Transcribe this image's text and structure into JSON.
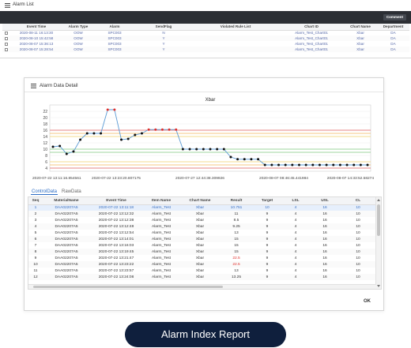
{
  "alarm_list": {
    "title": "Alarm List",
    "comment_label": "Comment",
    "columns": [
      "Event Time",
      "Alarm Type",
      "Alarm",
      "SendFlag",
      "Violated Rule List",
      "Chart ID",
      "Chart Name",
      "Department"
    ],
    "rows": [
      [
        "2020-08-11 16:13:30",
        "OOW",
        "SPC003",
        "N",
        "",
        "Alarm_Test_Chart01",
        "Xbar",
        "DA"
      ],
      [
        "2020-08-10 15:42:58",
        "OOW",
        "SPC003",
        "Y",
        "",
        "Alarm_Test_Chart01",
        "Xbar",
        "DA"
      ],
      [
        "2020-08-07 15:36:13",
        "OOW",
        "SPC003",
        "Y",
        "",
        "Alarm_Test_Chart01",
        "Xbar",
        "DA"
      ],
      [
        "2020-08-07 15:28:54",
        "OOW",
        "SPC003",
        "Y",
        "",
        "Alarm_Test_Chart01",
        "Xbar",
        "DA"
      ]
    ]
  },
  "detail": {
    "title": "Alarm Data Detail",
    "ok_label": "OK",
    "tabs": [
      "ControlData",
      "RawData"
    ],
    "columns": [
      "Seq",
      "MaterialName",
      "Event Time",
      "Item Name",
      "Chart Name",
      "Result",
      "Target",
      "LSL",
      "USL",
      "CL"
    ],
    "rows": [
      [
        "1",
        "DAA02207A5",
        "2020-07-22 13:11:18",
        "Alarm_Test",
        "Xbar",
        "10.751",
        "10",
        "4",
        "16",
        "10"
      ],
      [
        "2",
        "DAA02207A5",
        "2020-07-22 13:12:32",
        "Alarm_Test",
        "Xbar",
        "11",
        "9",
        "4",
        "16",
        "10"
      ],
      [
        "3",
        "DAA02207A5",
        "2020-07-22 13:12:38",
        "Alarm_Test",
        "Xbar",
        "8.5",
        "9",
        "4",
        "16",
        "10"
      ],
      [
        "4",
        "DAA02207A5",
        "2020-07-22 13:12:48",
        "Alarm_Test",
        "Xbar",
        "9.25",
        "9",
        "4",
        "16",
        "10"
      ],
      [
        "5",
        "DAA02207A5",
        "2020-07-22 13:12:54",
        "Alarm_Test",
        "Xbar",
        "13",
        "9",
        "4",
        "16",
        "10"
      ],
      [
        "6",
        "DAA02207A5",
        "2020-07-22 13:14:01",
        "Alarm_Test",
        "Xbar",
        "15",
        "9",
        "4",
        "16",
        "10"
      ],
      [
        "7",
        "DAA02207A5",
        "2020-07-22 13:16:03",
        "Alarm_Test",
        "Xbar",
        "15",
        "9",
        "4",
        "16",
        "10"
      ],
      [
        "8",
        "DAA02207A5",
        "2020-07-22 13:19:45",
        "Alarm_Test",
        "Xbar",
        "15",
        "9",
        "4",
        "16",
        "10"
      ],
      [
        "9",
        "DAA02207A5",
        "2020-07-22 13:21:47",
        "Alarm_Test",
        "Xbar",
        "22.5",
        "9",
        "4",
        "16",
        "10"
      ],
      [
        "10",
        "DAA02207A5",
        "2020-07-22 13:23:22",
        "Alarm_Test",
        "Xbar",
        "22.5",
        "9",
        "4",
        "16",
        "10"
      ],
      [
        "11",
        "DAA02207A5",
        "2020-07-22 13:23:57",
        "Alarm_Test",
        "Xbar",
        "13",
        "9",
        "4",
        "16",
        "10"
      ],
      [
        "12",
        "DAA02207A5",
        "2020-07-22 13:24:08",
        "Alarm_Test",
        "Xbar",
        "13.25",
        "9",
        "4",
        "16",
        "10"
      ]
    ],
    "red_results": [
      "22.5"
    ],
    "selected_row": 0
  },
  "chart_data": {
    "type": "line",
    "title": "Xbar",
    "ylim": [
      3,
      24
    ],
    "yticks": [
      4,
      6,
      8,
      10,
      12,
      14,
      16,
      18,
      20,
      22
    ],
    "xtick_labels": [
      "2020-07-22 13:11:16.854561",
      "2020-07-22 13:23:20.807175",
      "2020-07-27 12:44:38.309926",
      "2020-08-07 08:46:45.441984",
      "2020-08-07 14:33:52.58274"
    ],
    "grid": true,
    "series": [
      {
        "values": [
          10.75,
          11,
          8.5,
          9.25,
          13,
          15,
          15,
          15,
          22.5,
          22.5,
          13,
          13.25,
          14.5,
          15,
          16.2,
          16.2,
          16.2,
          16.2,
          16.2,
          10,
          10,
          10,
          10,
          10,
          10,
          10,
          7.5,
          6.8,
          6.8,
          6.8,
          6.8,
          5,
          5,
          5,
          5,
          5,
          5,
          5,
          5,
          5,
          5,
          5,
          5,
          5,
          5,
          5,
          5
        ],
        "color": "#5b9bd5",
        "out_of_spec_color": "#e0302c",
        "point_color": "#111111"
      }
    ],
    "limit_lines": [
      {
        "value": 16,
        "color": "#e06060"
      },
      {
        "value": 15,
        "color": "#f2b45a"
      },
      {
        "value": 14,
        "color": "#f3d26a"
      },
      {
        "value": 10,
        "color": "#7fc97f"
      },
      {
        "value": 9,
        "color": "#7fc97f"
      },
      {
        "value": 6,
        "color": "#f3d26a"
      },
      {
        "value": 5,
        "color": "#f2b45a"
      },
      {
        "value": 4,
        "color": "#e06060"
      }
    ]
  },
  "caption": "Alarm Index Report"
}
